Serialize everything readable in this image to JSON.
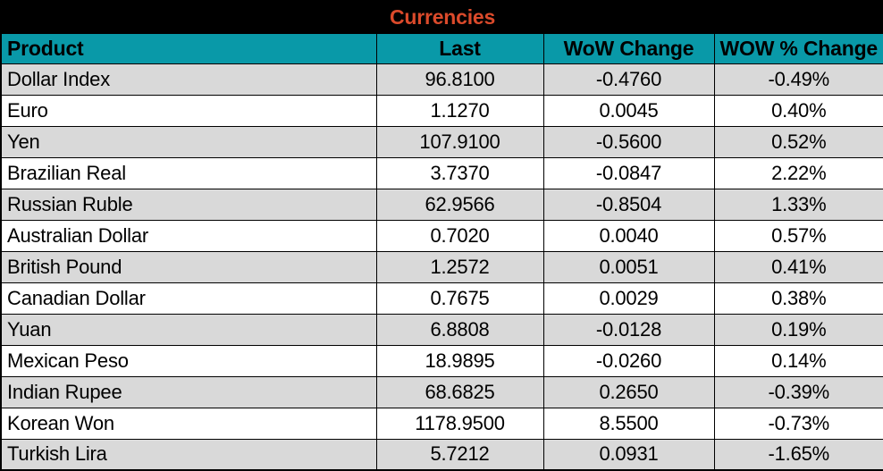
{
  "title": "Currencies",
  "colors": {
    "title_bg": "#000000",
    "title_text": "#DB4A2B",
    "header_bg": "#0999A8",
    "header_text": "#000000",
    "stripe_row_bg": "#D9D9D9",
    "plain_row_bg": "#FFFFFF",
    "border": "#000000"
  },
  "table": {
    "columns": [
      "Product",
      "Last",
      "WoW Change",
      "WOW % Change"
    ],
    "rows": [
      [
        "Dollar Index",
        "96.8100",
        "-0.4760",
        "-0.49%"
      ],
      [
        "Euro",
        "1.1270",
        "0.0045",
        "0.40%"
      ],
      [
        "Yen",
        "107.9100",
        "-0.5600",
        "0.52%"
      ],
      [
        "Brazilian Real",
        "3.7370",
        "-0.0847",
        "2.22%"
      ],
      [
        "Russian Ruble",
        "62.9566",
        "-0.8504",
        "1.33%"
      ],
      [
        "Australian Dollar",
        "0.7020",
        "0.0040",
        "0.57%"
      ],
      [
        "British Pound",
        "1.2572",
        "0.0051",
        "0.41%"
      ],
      [
        "Canadian Dollar",
        "0.7675",
        "0.0029",
        "0.38%"
      ],
      [
        "Yuan",
        "6.8808",
        "-0.0128",
        "0.19%"
      ],
      [
        "Mexican Peso",
        "18.9895",
        "-0.0260",
        "0.14%"
      ],
      [
        "Indian Rupee",
        "68.6825",
        "0.2650",
        "-0.39%"
      ],
      [
        "Korean Won",
        "1178.9500",
        "8.5500",
        "-0.73%"
      ],
      [
        "Turkish Lira",
        "5.7212",
        "0.0931",
        "-1.65%"
      ]
    ]
  },
  "chart_data": {
    "type": "table",
    "title": "Currencies",
    "categories": [
      "Dollar Index",
      "Euro",
      "Yen",
      "Brazilian Real",
      "Russian Ruble",
      "Australian Dollar",
      "British Pound",
      "Canadian Dollar",
      "Yuan",
      "Mexican Peso",
      "Indian Rupee",
      "Korean Won",
      "Turkish Lira"
    ],
    "series": [
      {
        "name": "Last",
        "values": [
          96.81,
          1.127,
          107.91,
          3.737,
          62.9566,
          0.702,
          1.2572,
          0.7675,
          6.8808,
          18.9895,
          68.6825,
          1178.95,
          5.7212
        ]
      },
      {
        "name": "WoW Change",
        "values": [
          -0.476,
          0.0045,
          -0.56,
          -0.0847,
          -0.8504,
          0.004,
          0.0051,
          0.0029,
          -0.0128,
          -0.026,
          0.265,
          8.55,
          0.0931
        ]
      },
      {
        "name": "WOW % Change",
        "values": [
          -0.49,
          0.4,
          0.52,
          2.22,
          1.33,
          0.57,
          0.41,
          0.38,
          0.19,
          0.14,
          -0.39,
          -0.73,
          -1.65
        ]
      }
    ]
  }
}
